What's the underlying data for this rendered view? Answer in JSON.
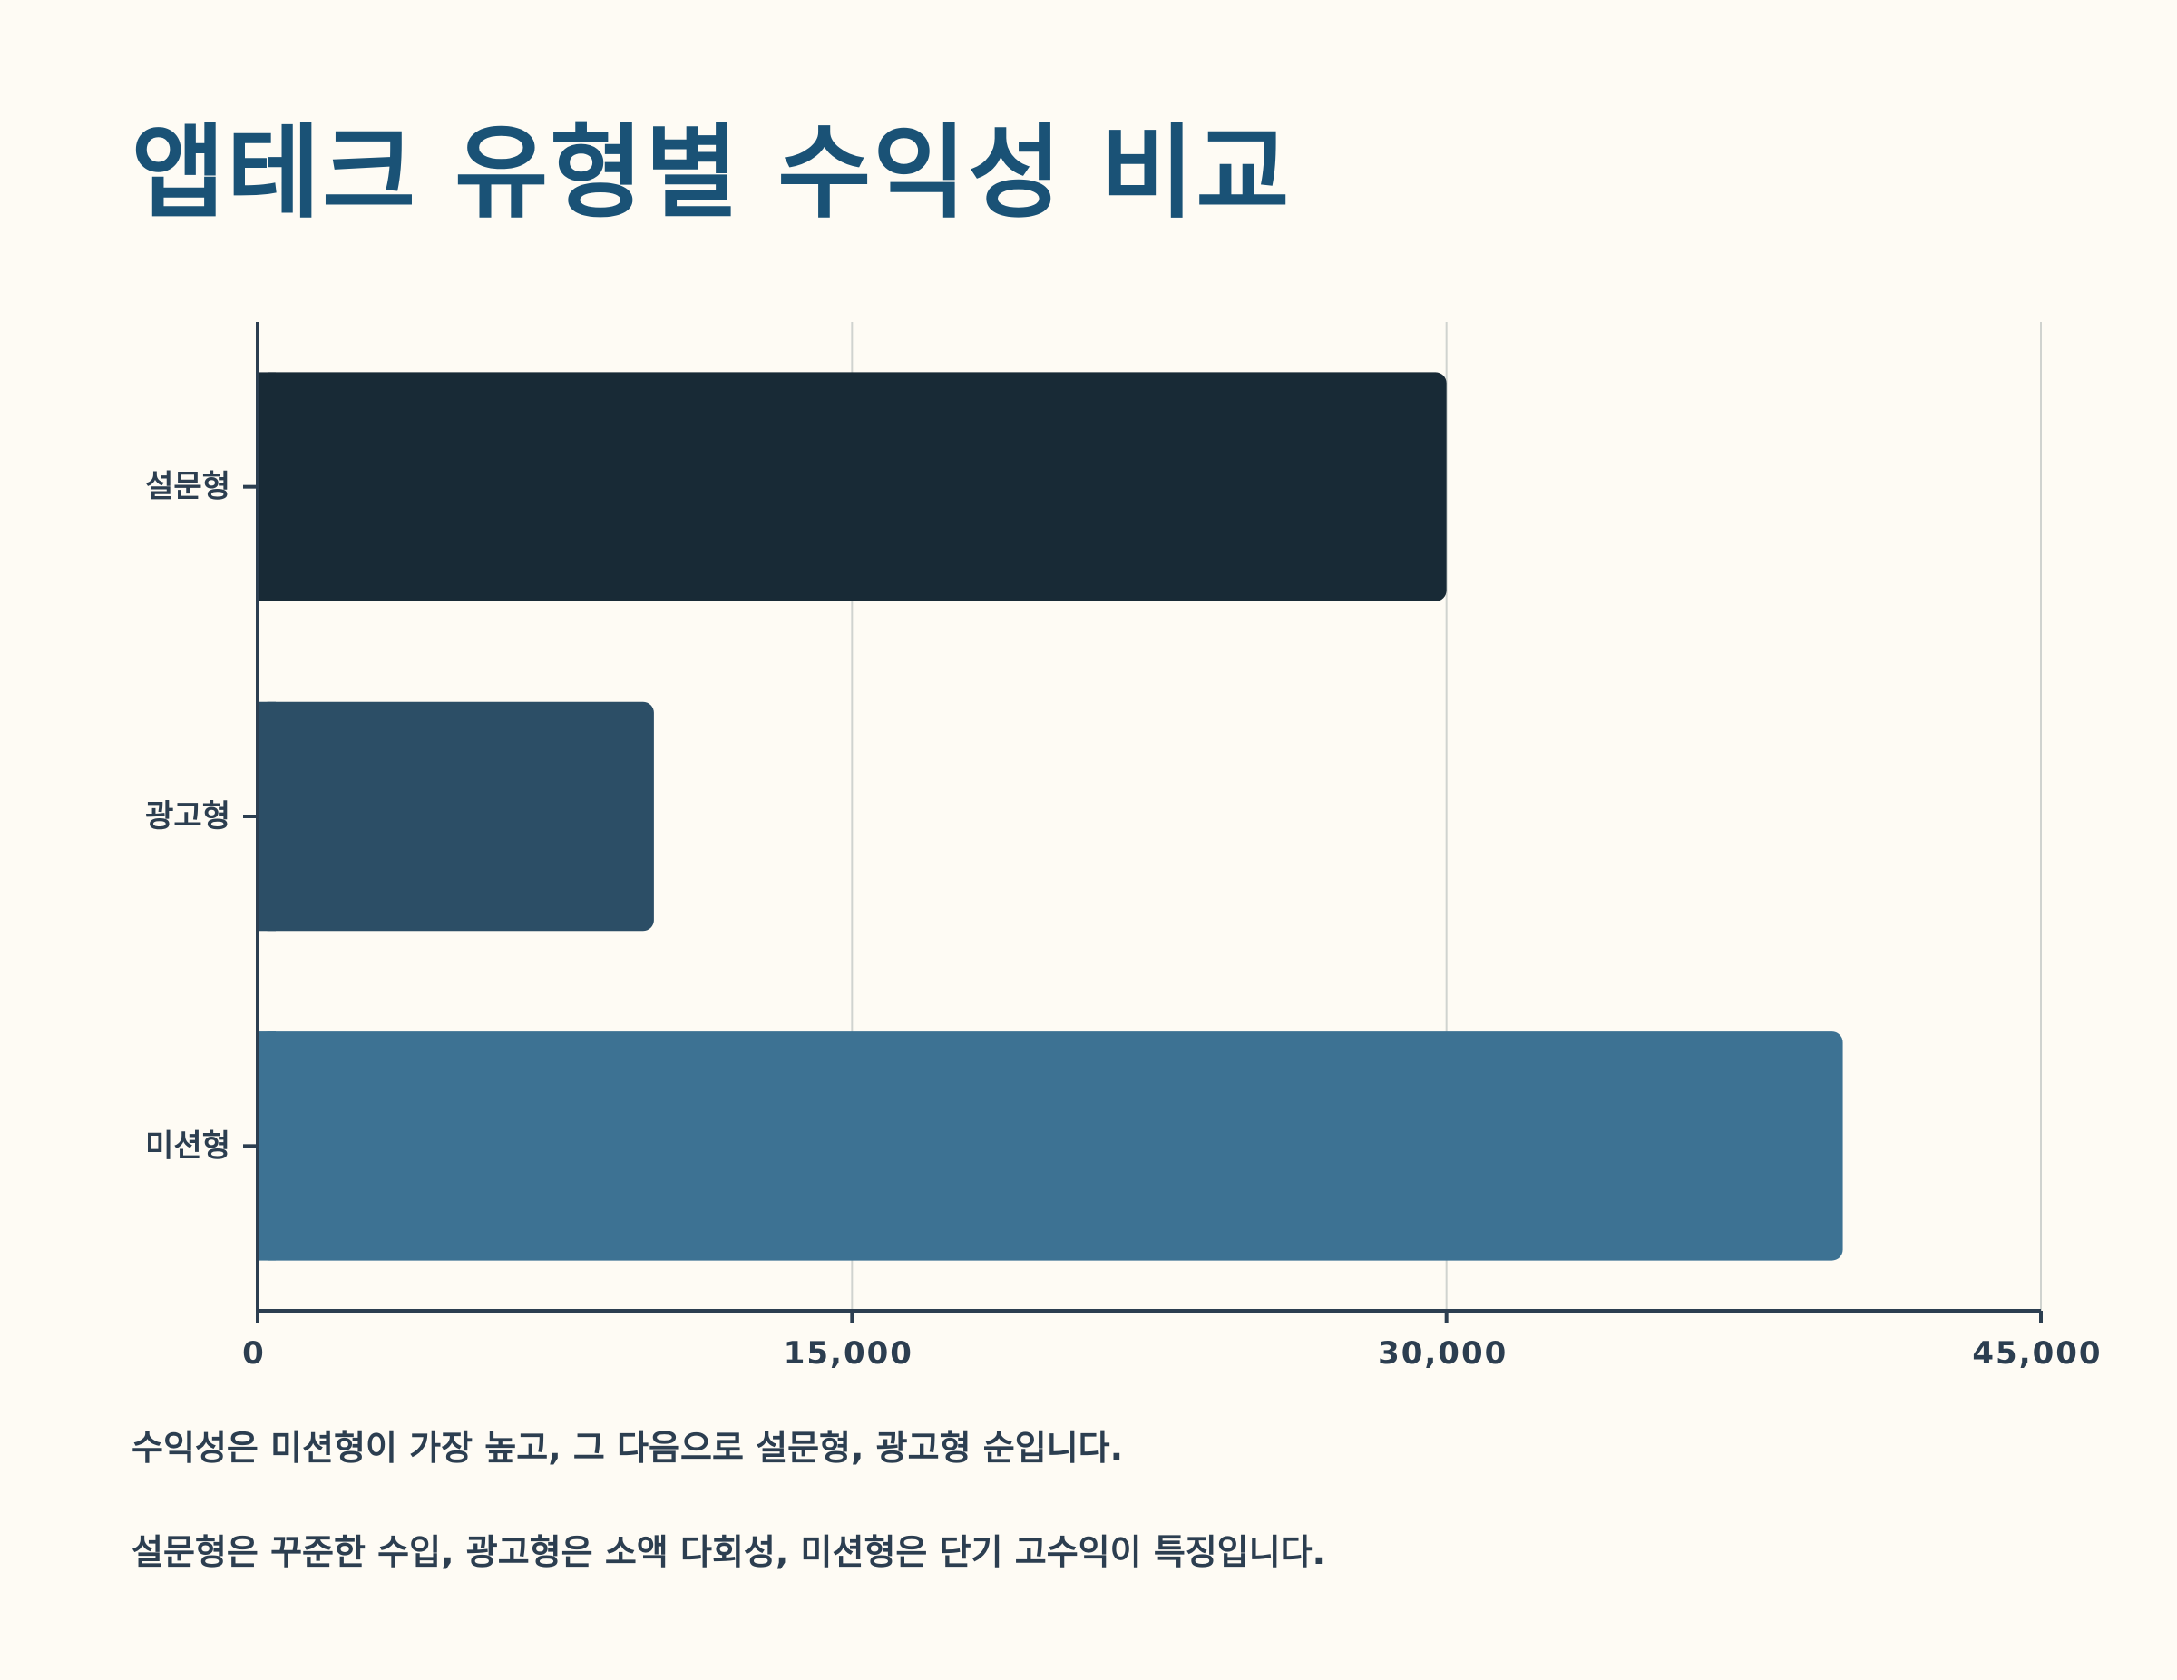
{
  "title": "앱테크 유형별 수익성 비교",
  "chart_data": {
    "type": "bar",
    "orientation": "horizontal",
    "categories": [
      "설문형",
      "광고형",
      "미션형"
    ],
    "values": [
      30000,
      10000,
      40000
    ],
    "colors": [
      "#182a36",
      "#2c4e66",
      "#3d7293"
    ],
    "xlim": [
      0,
      45000
    ],
    "xticks": [
      0,
      15000,
      30000,
      45000
    ],
    "xtick_labels": [
      "0",
      "15,000",
      "30,000",
      "45,000"
    ],
    "grid": "vertical",
    "xlabel": "",
    "ylabel": ""
  },
  "notes": [
    "수익성은 미션형이 가장 높고, 그 다음으로 설문형, 광고형 순입니다.",
    "설문형은 꾸준한 수입, 광고형은 소액 다회성, 미션형은 단기 고수익이 특징입니다."
  ]
}
